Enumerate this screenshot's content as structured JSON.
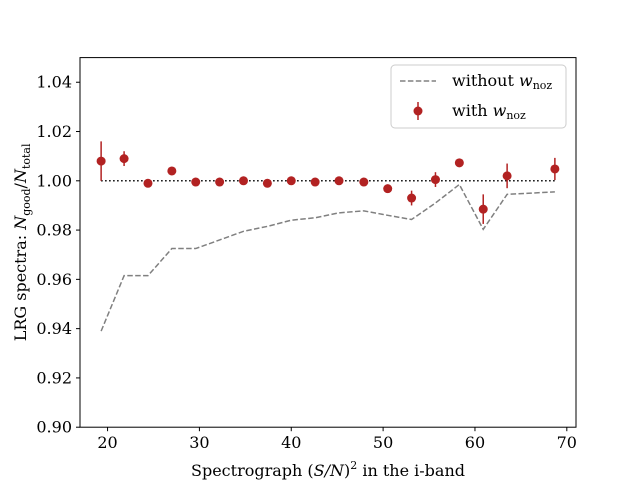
{
  "chart_data": {
    "type": "line",
    "title": "",
    "xlabel": {
      "prefix": "Spectrograph (",
      "math": "S/N",
      "suffix": ")",
      "superscript": "2",
      "tail": " in the i-band"
    },
    "ylabel": {
      "prefix": "LRG spectra:  ",
      "num": "N",
      "num_sub": "good",
      "slash": "/",
      "den": "N",
      "den_sub": "total"
    },
    "xlim": [
      17,
      71
    ],
    "ylim": [
      0.9,
      1.05
    ],
    "xticks": [
      20,
      30,
      40,
      50,
      60,
      70
    ],
    "xtick_labels": [
      "20",
      "30",
      "40",
      "50",
      "60",
      "70"
    ],
    "yticks": [
      0.9,
      0.92,
      0.94,
      0.96,
      0.98,
      1.0,
      1.02,
      1.04
    ],
    "ytick_labels": [
      "0.90",
      "0.92",
      "0.94",
      "0.96",
      "0.98",
      "1.00",
      "1.02",
      "1.04"
    ],
    "grid": false,
    "legend_position": "top-right",
    "reference_line": {
      "y": 1.0,
      "x_range": [
        19.3,
        68.7
      ],
      "style": "dotted",
      "color": "#000000"
    },
    "series": [
      {
        "name": "without w_noz",
        "legend_prefix": "without ",
        "legend_math": "w",
        "legend_sub": "noz",
        "kind": "line",
        "style": "dashed",
        "color": "#808080",
        "x": [
          19.3,
          21.8,
          24.4,
          27.0,
          29.6,
          32.2,
          34.8,
          37.4,
          40.0,
          42.6,
          45.2,
          47.9,
          50.5,
          53.1,
          55.7,
          58.3,
          60.9,
          63.5,
          66.1,
          68.7
        ],
        "y": [
          0.939,
          0.9615,
          0.9615,
          0.9725,
          0.9725,
          0.976,
          0.9795,
          0.9815,
          0.984,
          0.985,
          0.987,
          0.9878,
          0.986,
          0.9843,
          0.991,
          0.9985,
          0.9803,
          0.9945,
          0.995,
          0.9955
        ]
      },
      {
        "name": "with w_noz",
        "legend_prefix": "with ",
        "legend_math": "w",
        "legend_sub": "noz",
        "kind": "errorbar",
        "color": "#b22222",
        "x": [
          19.3,
          21.8,
          24.4,
          27.0,
          29.6,
          32.2,
          34.8,
          37.4,
          40.0,
          42.6,
          45.2,
          47.9,
          50.5,
          53.1,
          55.7,
          58.3,
          60.9,
          63.5,
          68.7
        ],
        "y": [
          1.008,
          1.009,
          0.999,
          1.004,
          0.9995,
          0.9995,
          1.0,
          0.999,
          1.0,
          0.9995,
          1.0,
          0.9995,
          0.9968,
          0.993,
          1.0005,
          1.0073,
          0.9885,
          1.002,
          1.0048
        ],
        "yerr": [
          0.008,
          0.003,
          0.001,
          0.001,
          0.0005,
          0.0005,
          0.0005,
          0.0005,
          0.0005,
          0.0005,
          0.0005,
          0.0005,
          0.001,
          0.003,
          0.003,
          0.001,
          0.006,
          0.005,
          0.0045
        ]
      }
    ]
  }
}
